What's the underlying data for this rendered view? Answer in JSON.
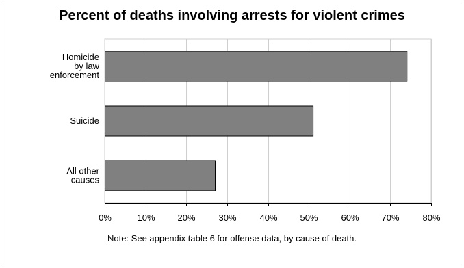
{
  "chart_data": {
    "type": "bar",
    "orientation": "horizontal",
    "title": "Percent of deaths involving arrests for violent crimes",
    "categories": [
      [
        "Homicide",
        "by law",
        "enforcement"
      ],
      [
        "Suicide"
      ],
      [
        "All other",
        "causes"
      ]
    ],
    "values": [
      74,
      51,
      27
    ],
    "xlim": [
      0,
      80
    ],
    "xticks": [
      0,
      10,
      20,
      30,
      40,
      50,
      60,
      70,
      80
    ],
    "tick_suffix": "%",
    "grid": true,
    "bar_color": "#808080",
    "note": "Note: See appendix table 6 for offense data, by cause of death."
  }
}
